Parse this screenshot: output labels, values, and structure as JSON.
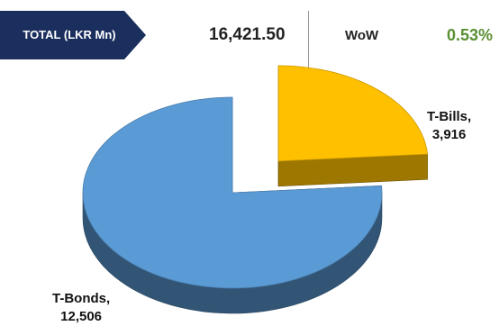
{
  "header": {
    "total_label": "TOTAL (LKR Mn)",
    "total_value": "16,421.50",
    "wow_label": "WoW",
    "wow_value": "0.53%",
    "badge_color": "#1b2f5e",
    "wow_color": "#5a8f32"
  },
  "chart_data": {
    "type": "pie",
    "style": "3d-exploded",
    "title": "",
    "slices": [
      {
        "name": "T-Bills",
        "value": 3916,
        "value_label": "3,916",
        "color": "#ffc000",
        "exploded": true
      },
      {
        "name": "T-Bonds",
        "value": 12506,
        "value_label": "12,506",
        "color": "#5b9bd5",
        "exploded": false
      }
    ]
  }
}
